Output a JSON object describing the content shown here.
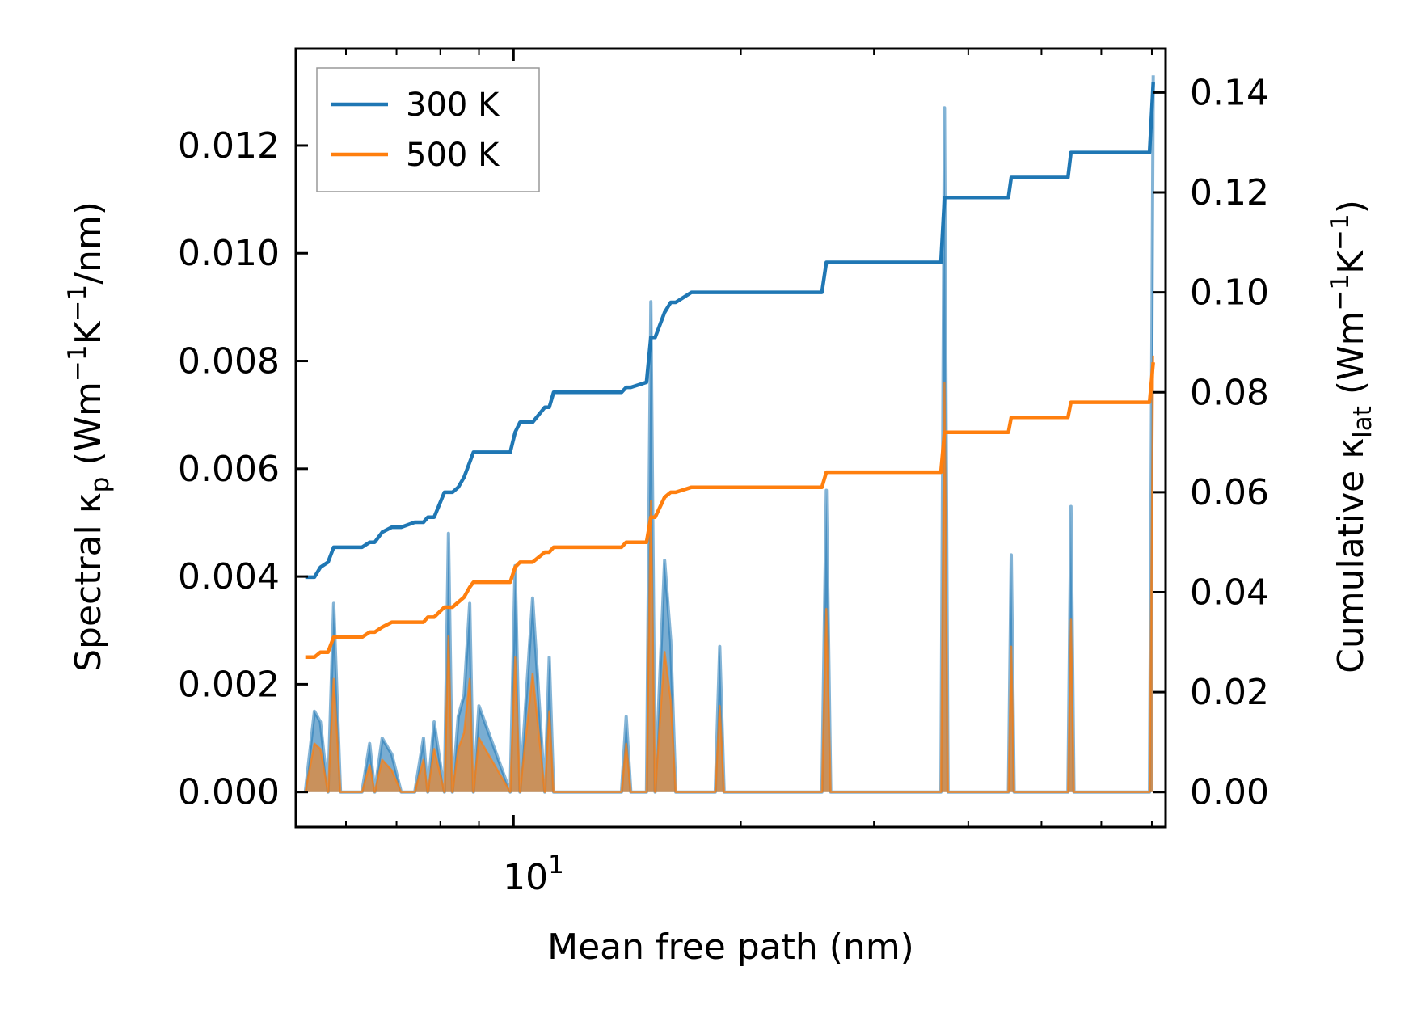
{
  "chart_data": {
    "type": "line",
    "xlabel": "Mean free path (nm)",
    "xscale": "log",
    "xlim": [
      5.15,
      73.0
    ],
    "x_major_tick": {
      "value": 10,
      "label_base": "10",
      "label_exp": "1"
    },
    "x_minor_ticks": [
      6,
      7,
      8,
      9,
      20,
      30,
      40,
      50,
      60,
      70
    ],
    "ylabel_left": {
      "prefix": "Spectral κ",
      "sub": "p",
      "mid": " (Wm",
      "sup1": "−1",
      "k": "K",
      "sup2": "−1",
      "suffix": "/nm)"
    },
    "ylabel_right": {
      "prefix": "Cumulative κ",
      "sub": "lat",
      "mid": " (Wm",
      "sup1": "−1",
      "k": "K",
      "sup2": "−1",
      "suffix": ")"
    },
    "ylim_left": [
      -0.00065,
      0.0138
    ],
    "ylim_right": [
      -0.007,
      0.1488
    ],
    "left_ticks": [
      0.0,
      0.002,
      0.004,
      0.006,
      0.008,
      0.01,
      0.012
    ],
    "left_tick_labels": [
      "0.000",
      "0.002",
      "0.004",
      "0.006",
      "0.008",
      "0.010",
      "0.012"
    ],
    "right_ticks": [
      0.0,
      0.02,
      0.04,
      0.06,
      0.08,
      0.1,
      0.12,
      0.14
    ],
    "right_tick_labels": [
      "0.00",
      "0.02",
      "0.04",
      "0.06",
      "0.08",
      "0.10",
      "0.12",
      "0.14"
    ],
    "legend": {
      "position": "upper-left",
      "entries": [
        {
          "label": "300 K",
          "color": "#1f77b4"
        },
        {
          "label": "500 K",
          "color": "#ff7f0e"
        }
      ]
    },
    "x": [
      5.3,
      5.45,
      5.55,
      5.68,
      5.78,
      5.9,
      6.3,
      6.45,
      6.55,
      6.7,
      6.9,
      7.1,
      7.4,
      7.6,
      7.7,
      7.85,
      8.1,
      8.2,
      8.3,
      8.45,
      8.6,
      8.75,
      8.85,
      9.0,
      9.9,
      10.05,
      10.2,
      10.6,
      11.0,
      11.15,
      11.3,
      11.55,
      11.75,
      13.9,
      14.1,
      14.3,
      15.0,
      15.2,
      15.4,
      15.85,
      16.15,
      16.4,
      17.2,
      18.5,
      18.75,
      19.0,
      25.6,
      25.95,
      26.3,
      36.8,
      37.2,
      37.6,
      45.2,
      45.6,
      46.0,
      54.2,
      54.7,
      55.2,
      69.5,
      70.3
    ],
    "series": [
      {
        "name": "300 K",
        "color": "#1f77b4",
        "spectral": [
          0,
          0.0015,
          0.0013,
          0,
          0.0035,
          0,
          0,
          0.0009,
          0,
          0.001,
          0.0007,
          0,
          0,
          0.001,
          0,
          0.0013,
          0,
          0.0048,
          0,
          0.0014,
          0.0018,
          0.0035,
          0,
          0.0016,
          0,
          0.0042,
          0,
          0.0036,
          0,
          0.0025,
          0,
          0,
          0,
          0,
          0.0014,
          0,
          0,
          0.0091,
          0,
          0.0043,
          0.0028,
          0,
          0,
          0,
          0.0027,
          0,
          0,
          0.0056,
          0,
          0,
          0.0127,
          0,
          0,
          0.0044,
          0,
          0,
          0.0053,
          0,
          0,
          0.0133
        ],
        "cumulative": [
          0.043,
          0.043,
          0.045,
          0.046,
          0.049,
          0.049,
          0.049,
          0.05,
          0.05,
          0.052,
          0.053,
          0.053,
          0.054,
          0.054,
          0.055,
          0.055,
          0.06,
          0.06,
          0.06,
          0.061,
          0.063,
          0.066,
          0.068,
          0.068,
          0.068,
          0.072,
          0.074,
          0.074,
          0.077,
          0.077,
          0.08,
          0.08,
          0.08,
          0.08,
          0.081,
          0.081,
          0.082,
          0.091,
          0.091,
          0.096,
          0.098,
          0.098,
          0.1,
          0.1,
          0.1,
          0.1,
          0.1,
          0.106,
          0.106,
          0.106,
          0.119,
          0.119,
          0.119,
          0.123,
          0.123,
          0.123,
          0.128,
          0.128,
          0.128,
          0.142
        ]
      },
      {
        "name": "500 K",
        "color": "#ff7f0e",
        "spectral": [
          0,
          0.0009,
          0.0008,
          0,
          0.0021,
          0,
          0,
          0.0005,
          0,
          0.0006,
          0.0004,
          0,
          0,
          0.0006,
          0,
          0.0008,
          0,
          0.0029,
          0,
          0.0008,
          0.0011,
          0.0021,
          0,
          0.001,
          0,
          0.0025,
          0,
          0.0022,
          0,
          0.0015,
          0,
          0,
          0,
          0,
          0.0009,
          0,
          0,
          0.0054,
          0,
          0.0026,
          0.0017,
          0,
          0,
          0,
          0.0016,
          0,
          0,
          0.0034,
          0,
          0,
          0.0076,
          0,
          0,
          0.0027,
          0,
          0,
          0.0032,
          0,
          0,
          0.0081
        ],
        "cumulative": [
          0.027,
          0.027,
          0.028,
          0.028,
          0.031,
          0.031,
          0.031,
          0.032,
          0.032,
          0.033,
          0.034,
          0.034,
          0.034,
          0.034,
          0.035,
          0.035,
          0.037,
          0.037,
          0.037,
          0.038,
          0.039,
          0.041,
          0.042,
          0.042,
          0.042,
          0.045,
          0.046,
          0.046,
          0.048,
          0.048,
          0.049,
          0.049,
          0.049,
          0.049,
          0.05,
          0.05,
          0.05,
          0.055,
          0.055,
          0.059,
          0.06,
          0.06,
          0.061,
          0.061,
          0.061,
          0.061,
          0.061,
          0.064,
          0.064,
          0.064,
          0.072,
          0.072,
          0.072,
          0.075,
          0.075,
          0.075,
          0.078,
          0.078,
          0.078,
          0.086
        ]
      }
    ]
  }
}
